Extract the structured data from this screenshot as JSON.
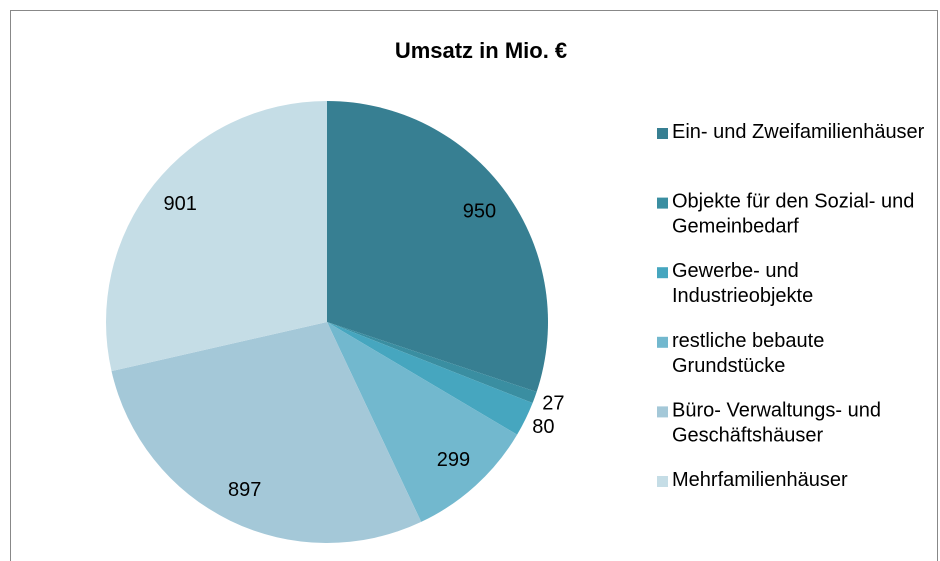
{
  "chart_data": {
    "type": "pie",
    "title": "Umsatz in Mio. €",
    "categories": [
      "Ein- und Zweifamilienhäuser",
      "Objekte für den Sozial- und Gemeinbedarf",
      "Gewerbe- und Industrieobjekte",
      "restliche bebaute Grundstücke",
      "Büro- Verwaltungs- und Geschäftshäuser",
      "Mehrfamilienhäuser"
    ],
    "values": [
      950,
      27,
      80,
      299,
      897,
      901
    ],
    "colors": [
      "#377f92",
      "#3a8ea1",
      "#46a6bf",
      "#72b8ce",
      "#a4c8d8",
      "#c5dde6"
    ],
    "legend": "right"
  }
}
